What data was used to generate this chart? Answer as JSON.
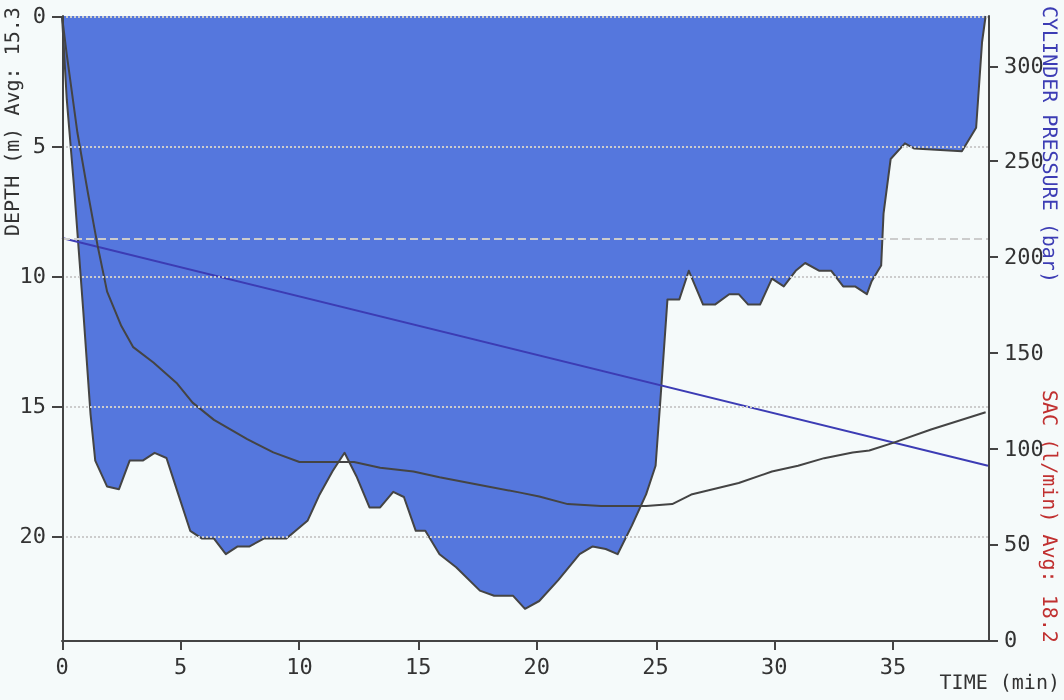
{
  "chart_data": {
    "type": "line",
    "xlabel": "TIME (min)",
    "ylabel": "DEPTH (m) Avg: 15.3",
    "y2label": "CYLINDER PRESSURE (bar)",
    "annotations": [
      "SAC (l/min) Avg: 18.2"
    ],
    "xlim": [
      0,
      39
    ],
    "xticks": [
      0,
      5,
      10,
      15,
      20,
      25,
      30,
      35
    ],
    "ylim": [
      24,
      0
    ],
    "yticks": [
      0,
      5,
      10,
      15,
      20
    ],
    "y2lim": [
      0,
      326
    ],
    "y2ticks": [
      0,
      50,
      100,
      150,
      200,
      250,
      300
    ],
    "grid": "y",
    "marker": "none",
    "line_style": "solid",
    "ref_lines": [
      {
        "axis": "y2",
        "value": 210,
        "color": "#cccccc",
        "line_style": "dashed"
      }
    ],
    "series": [
      {
        "type": "area",
        "color": "#5577dd",
        "x": [
          0,
          0.2,
          0.5,
          0.9,
          1.2,
          1.4,
          1.9,
          2.4,
          2.85,
          3.4,
          3.9,
          4.4,
          4.9,
          5.4,
          5.9,
          6.4,
          6.9,
          7.4,
          7.9,
          8.5,
          9.45,
          10.35,
          10.85,
          11.4,
          11.9,
          12.4,
          12.95,
          13.4,
          13.95,
          14.4,
          14.9,
          15.3,
          15.9,
          16.6,
          17.6,
          18.2,
          19.0,
          19.5,
          20.1,
          20.9,
          21.8,
          22.35,
          22.9,
          23.4,
          24.0,
          24.6,
          25.0,
          25.2,
          25.5,
          26.0,
          26.4,
          27.0,
          27.5,
          28.1,
          28.5,
          28.9,
          29.4,
          29.9,
          30.4,
          30.9,
          31.3,
          31.9,
          32.4,
          32.9,
          33.4,
          33.9,
          34.1,
          34.5,
          34.6,
          34.9,
          35.5,
          35.9,
          37.9,
          38.5,
          38.75,
          38.9
        ],
        "values": [
          0,
          3.2,
          6.5,
          11.4,
          15.3,
          17.1,
          18.1,
          18.2,
          17.1,
          17.1,
          16.8,
          17.0,
          18.4,
          19.8,
          20.1,
          20.1,
          20.7,
          20.4,
          20.4,
          20.1,
          20.1,
          19.4,
          18.4,
          17.5,
          16.8,
          17.7,
          18.9,
          18.9,
          18.3,
          18.5,
          19.8,
          19.8,
          20.7,
          21.2,
          22.1,
          22.3,
          22.3,
          22.8,
          22.5,
          21.7,
          20.7,
          20.4,
          20.5,
          20.7,
          19.6,
          18.4,
          17.3,
          14.8,
          10.9,
          10.9,
          9.8,
          11.1,
          11.1,
          10.7,
          10.7,
          11.1,
          11.1,
          10.1,
          10.4,
          9.8,
          9.5,
          9.8,
          9.8,
          10.4,
          10.4,
          10.7,
          10.2,
          9.6,
          7.6,
          5.5,
          4.9,
          5.1,
          5.2,
          4.3,
          1.0,
          0
        ]
      },
      {
        "type": "line",
        "axis": "y2",
        "color": "#3c3cb4",
        "x": [
          0,
          39
        ],
        "values": [
          210,
          91
        ]
      },
      {
        "type": "line",
        "axis": "y2",
        "color": "#444444",
        "x": [
          0,
          0.2,
          0.65,
          1.1,
          1.5,
          1.9,
          2.5,
          3.0,
          3.85,
          4.85,
          5.5,
          6.4,
          7.8,
          8.9,
          10.0,
          12.3,
          13.4,
          14.8,
          15.9,
          17.6,
          19.3,
          20.1,
          21.3,
          22.7,
          24.6,
          25.7,
          26.5,
          28.5,
          29.9,
          31.0,
          32.1,
          33.3,
          34.0,
          35.0,
          36.6,
          38.9
        ],
        "values": [
          326,
          306,
          265,
          233,
          206,
          182,
          164,
          153,
          145,
          134,
          124,
          115,
          105,
          98,
          93,
          93,
          90,
          88,
          85,
          81,
          77,
          75,
          71,
          70,
          70,
          71,
          76,
          82,
          88,
          91,
          95,
          98,
          99,
          103,
          110,
          119
        ]
      }
    ]
  }
}
